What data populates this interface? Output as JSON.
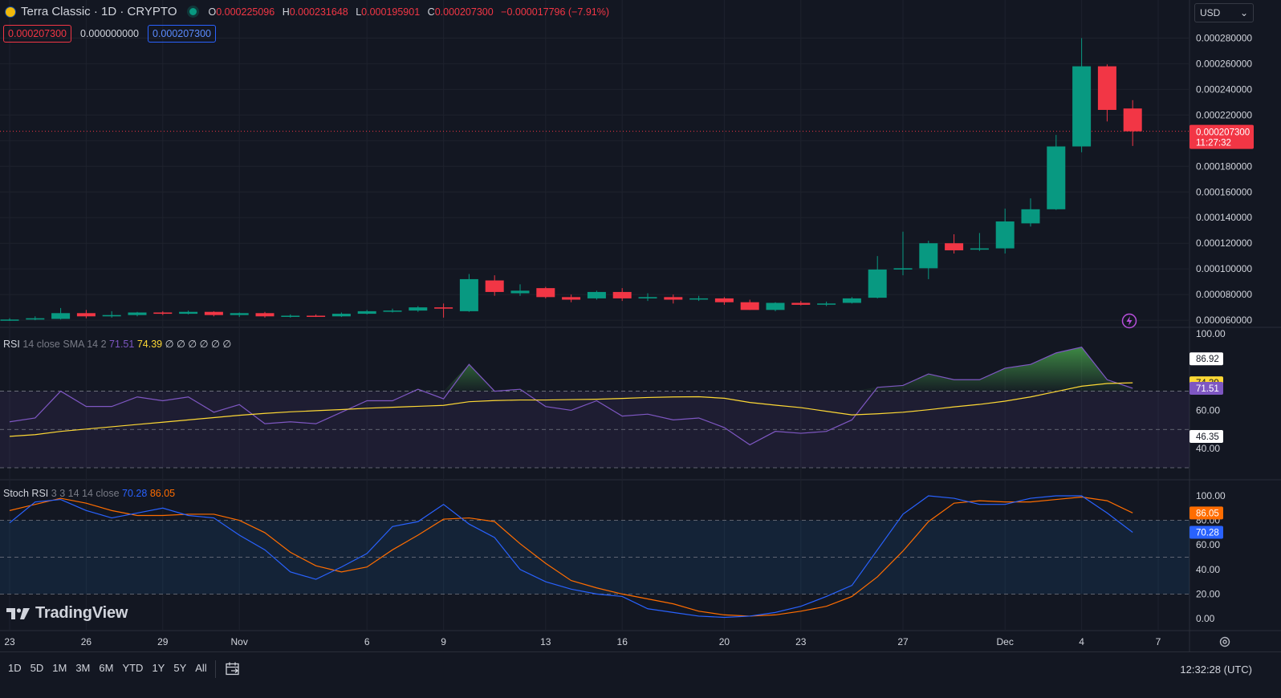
{
  "header": {
    "title": "Terra Classic · 1D · CRYPTO",
    "ohlc": [
      {
        "k": "O",
        "v": "0.000225096"
      },
      {
        "k": "H",
        "v": "0.000231648"
      },
      {
        "k": "L",
        "v": "0.000195901"
      },
      {
        "k": "C",
        "v": "0.000207300"
      }
    ],
    "change": "−0.000017796 (−7.91%)",
    "bid": "0.000207300",
    "spread": "0.000000000",
    "ask": "0.000207300",
    "currency": "USD",
    "status_color": "#089981"
  },
  "indicators": {
    "rsi": {
      "name": "RSI",
      "params": "14 close SMA 14 2",
      "v1": "71.51",
      "v2": "74.39",
      "rest": "∅ ∅ ∅ ∅ ∅ ∅"
    },
    "stoch": {
      "name": "Stoch RSI",
      "params": "3 3 14 14 close",
      "v1": "70.28",
      "v2": "86.05"
    }
  },
  "bottom": {
    "ranges": [
      "1D",
      "5D",
      "1M",
      "3M",
      "6M",
      "YTD",
      "1Y",
      "5Y",
      "All"
    ],
    "clock": "12:32:28 (UTC)"
  },
  "brand": {
    "name": "TradingView",
    "logo_glyph": "17"
  },
  "colors": {
    "up": "#089981",
    "down": "#f23645",
    "rsi": "#7e57c2",
    "rsi_ma": "#fdd835",
    "stoch_k": "#2962ff",
    "stoch_d": "#ff6d00"
  },
  "chart_data": {
    "type": "candlestick",
    "dates": [
      "Oct 23",
      "Oct 24",
      "Oct 25",
      "Oct 26",
      "Oct 27",
      "Oct 28",
      "Oct 29",
      "Oct 30",
      "Oct 31",
      "Nov 1",
      "Nov 2",
      "Nov 3",
      "Nov 4",
      "Nov 5",
      "Nov 6",
      "Nov 7",
      "Nov 8",
      "Nov 9",
      "Nov 10",
      "Nov 11",
      "Nov 12",
      "Nov 13",
      "Nov 14",
      "Nov 15",
      "Nov 16",
      "Nov 17",
      "Nov 18",
      "Nov 19",
      "Nov 20",
      "Nov 21",
      "Nov 22",
      "Nov 23",
      "Nov 24",
      "Nov 25",
      "Nov 26",
      "Nov 27",
      "Nov 28",
      "Nov 29",
      "Nov 30",
      "Dec 1",
      "Dec 2",
      "Dec 3",
      "Dec 4",
      "Dec 5",
      "Dec 6"
    ],
    "candles": [
      [
        6e-05,
        6.15e-05,
        5.95e-05,
        6.05e-05
      ],
      [
        6.05e-05,
        6.3e-05,
        6e-05,
        6.15e-05
      ],
      [
        6.1e-05,
        6.95e-05,
        6.05e-05,
        6.55e-05
      ],
      [
        6.55e-05,
        6.8e-05,
        6.15e-05,
        6.3e-05
      ],
      [
        6.3e-05,
        6.7e-05,
        6.2e-05,
        6.4e-05
      ],
      [
        6.4e-05,
        6.65e-05,
        6.3e-05,
        6.6e-05
      ],
      [
        6.6e-05,
        6.7e-05,
        6.4e-05,
        6.5e-05
      ],
      [
        6.5e-05,
        6.75e-05,
        6.45e-05,
        6.65e-05
      ],
      [
        6.65e-05,
        6.7e-05,
        6.3e-05,
        6.4e-05
      ],
      [
        6.4e-05,
        6.6e-05,
        6.25e-05,
        6.55e-05
      ],
      [
        6.55e-05,
        6.65e-05,
        6.2e-05,
        6.3e-05
      ],
      [
        6.3e-05,
        6.45e-05,
        6.2e-05,
        6.35e-05
      ],
      [
        6.35e-05,
        6.45e-05,
        6.25e-05,
        6.3e-05
      ],
      [
        6.3e-05,
        6.6e-05,
        6.25e-05,
        6.5e-05
      ],
      [
        6.5e-05,
        6.8e-05,
        6.45e-05,
        6.7e-05
      ],
      [
        6.7e-05,
        6.9e-05,
        6.6e-05,
        6.75e-05
      ],
      [
        6.75e-05,
        7.1e-05,
        6.65e-05,
        7e-05
      ],
      [
        7e-05,
        7.3e-05,
        6.2e-05,
        6.9e-05
      ],
      [
        6.7e-05,
        9.6e-05,
        6.65e-05,
        9.2e-05
      ],
      [
        9.1e-05,
        9.5e-05,
        7.9e-05,
        8.2e-05
      ],
      [
        8.1e-05,
        8.8e-05,
        7.9e-05,
        8.3e-05
      ],
      [
        8.5e-05,
        8.6e-05,
        7.7e-05,
        7.8e-05
      ],
      [
        7.8e-05,
        8e-05,
        7.4e-05,
        7.6e-05
      ],
      [
        7.7e-05,
        8.3e-05,
        7.6e-05,
        8.2e-05
      ],
      [
        8.2e-05,
        8.5e-05,
        7.5e-05,
        7.7e-05
      ],
      [
        7.7e-05,
        8.1e-05,
        7.5e-05,
        7.8e-05
      ],
      [
        7.8e-05,
        8e-05,
        7.3e-05,
        7.6e-05
      ],
      [
        7.7e-05,
        7.9e-05,
        7.5e-05,
        7.7e-05
      ],
      [
        7.7e-05,
        7.8e-05,
        7.2e-05,
        7.4e-05
      ],
      [
        7.4e-05,
        7.6e-05,
        6.8e-05,
        6.8e-05
      ],
      [
        6.8e-05,
        7.4e-05,
        6.7e-05,
        7.35e-05
      ],
      [
        7.35e-05,
        7.5e-05,
        7.15e-05,
        7.2e-05
      ],
      [
        7.25e-05,
        7.45e-05,
        7.1e-05,
        7.3e-05
      ],
      [
        7.35e-05,
        7.8e-05,
        7.3e-05,
        7.7e-05
      ],
      [
        7.75e-05,
        0.00011,
        7.7e-05,
        9.95e-05
      ],
      [
        9.95e-05,
        0.000129,
        9.5e-05,
        0.0001005
      ],
      [
        0.0001005,
        0.000122,
        9.2e-05,
        0.00012
      ],
      [
        0.00012,
        0.000127,
        0.000112,
        0.0001145
      ],
      [
        0.000115,
        0.000128,
        0.000114,
        0.000116
      ],
      [
        0.000116,
        0.000147,
        0.000112,
        0.000137
      ],
      [
        0.0001355,
        0.000155,
        0.000133,
        0.0001465
      ],
      [
        0.0001465,
        0.0002045,
        0.000146,
        0.0001955
      ],
      [
        0.0001955,
        0.00028,
        0.000191,
        0.000258
      ],
      [
        0.000258,
        0.0002595,
        0.000215,
        0.000224
      ],
      [
        0.0002251,
        0.0002316,
        0.0001959,
        0.0002073
      ]
    ],
    "price_ticks": [
      "0.000280000",
      "0.000260000",
      "0.000240000",
      "0.000220000",
      "0.000200000",
      "0.000180000",
      "0.000160000",
      "0.000140000",
      "0.000120000",
      "0.000100000",
      "0.000080000",
      "0.000060000"
    ],
    "price_range": [
      5.88e-05,
      0.0002853
    ],
    "last_price_label": "0.000207300",
    "countdown": "11:27:32",
    "rsi": [
      54,
      56,
      70,
      62,
      62,
      67,
      65,
      67,
      59,
      63,
      53,
      54,
      53,
      59,
      65,
      65,
      71,
      66,
      84,
      70,
      71,
      62,
      60,
      65,
      57,
      58,
      55,
      56,
      51,
      42,
      49,
      48,
      49,
      55,
      72,
      73,
      79,
      76,
      76,
      82,
      84,
      90,
      93,
      76,
      71.51
    ],
    "rsi_ma": [
      46.4,
      47.3,
      49.0,
      50.2,
      51.4,
      52.6,
      53.8,
      55.0,
      56.2,
      57.4,
      58.4,
      59.2,
      59.8,
      60.4,
      61.1,
      61.6,
      62.1,
      62.6,
      64.5,
      65.1,
      65.4,
      65.4,
      65.6,
      65.8,
      66.2,
      66.7,
      67.0,
      67.1,
      66.3,
      64.1,
      62.7,
      61.4,
      59.5,
      57.6,
      58.2,
      59.0,
      60.3,
      61.8,
      63.1,
      64.8,
      67.0,
      69.8,
      72.6,
      74.0,
      74.39
    ],
    "rsi_ticks": [
      "100.00",
      "60.00",
      "40.00"
    ],
    "rsi_labels": {
      "rsi_max": "86.92",
      "ma": "74.39",
      "rsi": "71.51",
      "rsi_min": "46.35"
    },
    "stoch_k": [
      78,
      95,
      97,
      88,
      82,
      86,
      90,
      84,
      82,
      68,
      56,
      38,
      32,
      42,
      53,
      75,
      79,
      93,
      77,
      66,
      40,
      30,
      24,
      20,
      18,
      8,
      5,
      2,
      1,
      2,
      5,
      10,
      18,
      27,
      56,
      85,
      100,
      98,
      93,
      93,
      98,
      100,
      100,
      86,
      70.28
    ],
    "stoch_d": [
      88,
      93,
      98,
      94,
      88,
      84,
      84,
      85,
      85,
      80,
      70,
      54,
      43,
      38,
      42,
      56,
      68,
      81,
      82,
      79,
      61,
      45,
      31,
      25,
      20,
      16,
      12,
      6,
      3,
      2,
      3,
      6,
      10,
      18,
      34,
      55,
      79,
      94,
      96,
      95,
      95,
      97,
      99,
      96,
      86.05
    ],
    "stoch_ticks": [
      "100.00",
      "80.00",
      "60.00",
      "40.00",
      "20.00",
      "0.00"
    ],
    "stoch_labels": {
      "d": "86.05",
      "k": "70.28"
    },
    "x_labels": [
      {
        "i": 0,
        "t": "23"
      },
      {
        "i": 3,
        "t": "26"
      },
      {
        "i": 6,
        "t": "29"
      },
      {
        "i": 9,
        "t": "Nov"
      },
      {
        "i": 14,
        "t": "6"
      },
      {
        "i": 17,
        "t": "9"
      },
      {
        "i": 21,
        "t": "13"
      },
      {
        "i": 24,
        "t": "16"
      },
      {
        "i": 28,
        "t": "20"
      },
      {
        "i": 31,
        "t": "23"
      },
      {
        "i": 35,
        "t": "27"
      },
      {
        "i": 39,
        "t": "Dec"
      },
      {
        "i": 42,
        "t": "4"
      },
      {
        "i": 45,
        "t": "7"
      }
    ]
  }
}
